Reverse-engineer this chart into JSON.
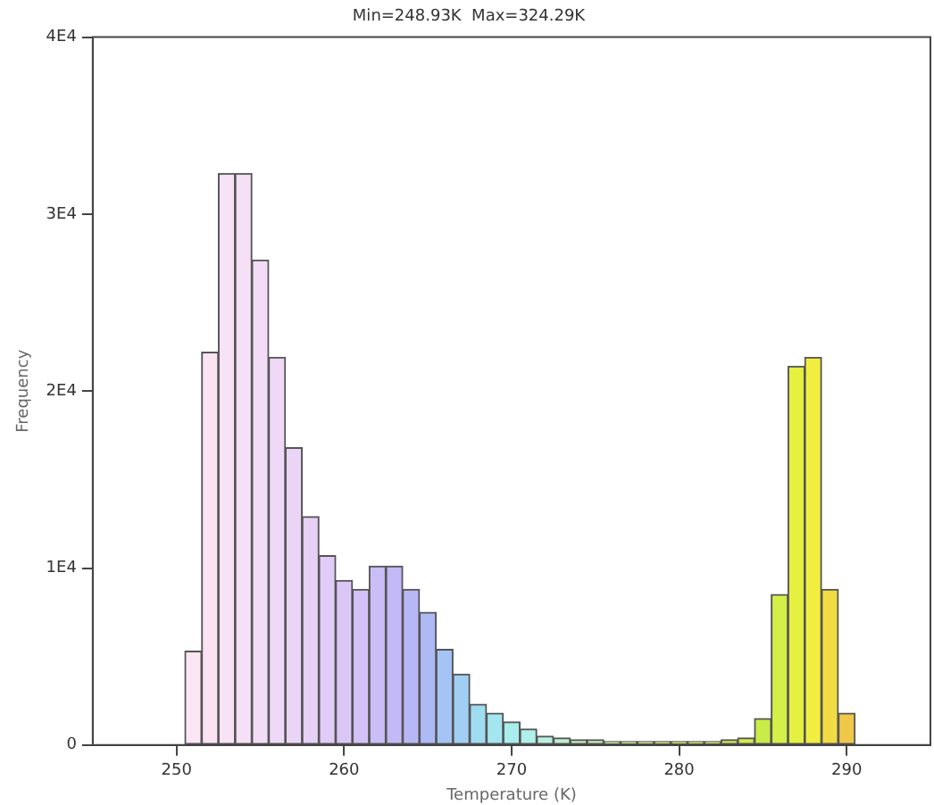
{
  "chart_data": {
    "type": "histogram",
    "subtitle": "Min=248.93K  Max=324.29K",
    "xlabel": "Temperature (K)",
    "ylabel": "Frequency",
    "bins": [
      250.5,
      251.5,
      252.5,
      253.5,
      254.5,
      255.5,
      256.5,
      257.5,
      258.5,
      259.5,
      260.5,
      261.5,
      262.5,
      263.5,
      264.5,
      265.5,
      266.5,
      267.5,
      268.5,
      269.5,
      270.5,
      271.5,
      272.5,
      273.5,
      274.5,
      275.5,
      276.5,
      277.5,
      278.5,
      279.5,
      280.5,
      281.5,
      282.5,
      283.5,
      284.5,
      285.5,
      286.5,
      287.5,
      288.5,
      289.5,
      290.5
    ],
    "values": [
      5300,
      22200,
      32300,
      32300,
      27400,
      21900,
      16800,
      12900,
      10700,
      9300,
      8800,
      10100,
      10100,
      8800,
      7500,
      5400,
      4000,
      2300,
      1800,
      1300,
      900,
      500,
      400,
      300,
      300,
      200,
      200,
      200,
      200,
      200,
      200,
      200,
      300,
      400,
      1500,
      8500,
      21400,
      21900,
      8800,
      1800
    ],
    "colors": [
      "#fbe6f4",
      "#fae4f4",
      "#f8e2f5",
      "#f6e0f5",
      "#f3ddf6",
      "#efd9f6",
      "#ebd5f6",
      "#e6d0f6",
      "#e0ccf6",
      "#dac7f6",
      "#d3c2f6",
      "#cbbdf6",
      "#c2b9f6",
      "#b8b7f6",
      "#aebaf6",
      "#a5c4f5",
      "#a0cff3",
      "#a0dcf1",
      "#a4e6ef",
      "#a9eded",
      "#b0f0ea",
      "#b8f0e0",
      "#c0f0d2",
      "#c6f0c2",
      "#caf0b0",
      "#ccf09c",
      "#cdf088",
      "#cef076",
      "#cff066",
      "#d0ef5c",
      "#d2ee55",
      "#d3ed50",
      "#d4ec4c",
      "#d5eb48",
      "#c8ec48",
      "#d4f048",
      "#e6f040",
      "#f2ee40",
      "#f2dc44",
      "#efc84a"
    ],
    "xlim": [
      245,
      295
    ],
    "xticks": [
      250,
      260,
      270,
      280,
      290
    ],
    "ylim": [
      0,
      40000
    ],
    "yticks": [
      0,
      {
        "value": 10000,
        "label": "1E4"
      },
      {
        "value": 20000,
        "label": "2E4"
      },
      {
        "value": 30000,
        "label": "3E4"
      },
      {
        "value": 40000,
        "label": "4E4"
      }
    ],
    "grid": false,
    "legend": false
  }
}
